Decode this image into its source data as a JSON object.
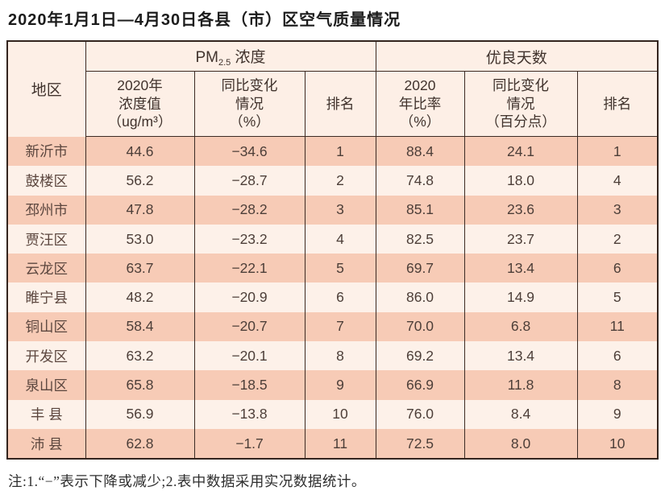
{
  "page": {
    "title": "2020年1月1日—4月30日各县（市）区空气质量情况",
    "note": "注:1.“−”表示下降或减少;2.表中数据采用实况数据统计。"
  },
  "table": {
    "header": {
      "region": "地区",
      "pm_group": {
        "prefix": "PM",
        "sub": "2.5",
        "suffix": " 浓度"
      },
      "good_days_group": "优良天数",
      "sub_headers": {
        "pm_value": "2020年\n浓度值\n（ug/m³）",
        "pm_change": "同比变化\n情况\n（%）",
        "pm_rank": "排名",
        "gd_rate": "2020\n年比率\n（%）",
        "gd_change": "同比变化\n情况\n（百分点）",
        "gd_rank": "排名"
      }
    },
    "rows": [
      {
        "region": "新沂市",
        "pm_value": "44.6",
        "pm_change": "−34.6",
        "pm_rank": "1",
        "gd_rate": "88.4",
        "gd_change": "24.1",
        "gd_rank": "1"
      },
      {
        "region": "鼓楼区",
        "pm_value": "56.2",
        "pm_change": "−28.7",
        "pm_rank": "2",
        "gd_rate": "74.8",
        "gd_change": "18.0",
        "gd_rank": "4"
      },
      {
        "region": "邳州市",
        "pm_value": "47.8",
        "pm_change": "−28.2",
        "pm_rank": "3",
        "gd_rate": "85.1",
        "gd_change": "23.6",
        "gd_rank": "3"
      },
      {
        "region": "贾汪区",
        "pm_value": "53.0",
        "pm_change": "−23.2",
        "pm_rank": "4",
        "gd_rate": "82.5",
        "gd_change": "23.7",
        "gd_rank": "2"
      },
      {
        "region": "云龙区",
        "pm_value": "63.7",
        "pm_change": "−22.1",
        "pm_rank": "5",
        "gd_rate": "69.7",
        "gd_change": "13.4",
        "gd_rank": "6"
      },
      {
        "region": "睢宁县",
        "pm_value": "48.2",
        "pm_change": "−20.9",
        "pm_rank": "6",
        "gd_rate": "86.0",
        "gd_change": "14.9",
        "gd_rank": "5"
      },
      {
        "region": "铜山区",
        "pm_value": "58.4",
        "pm_change": "−20.7",
        "pm_rank": "7",
        "gd_rate": "70.0",
        "gd_change": "6.8",
        "gd_rank": "11"
      },
      {
        "region": "开发区",
        "pm_value": "63.2",
        "pm_change": "−20.1",
        "pm_rank": "8",
        "gd_rate": "69.2",
        "gd_change": "13.4",
        "gd_rank": "6"
      },
      {
        "region": "泉山区",
        "pm_value": "65.8",
        "pm_change": "−18.5",
        "pm_rank": "9",
        "gd_rate": "66.9",
        "gd_change": "11.8",
        "gd_rank": "8"
      },
      {
        "region": "丰 县",
        "pm_value": "56.9",
        "pm_change": "−13.8",
        "pm_rank": "10",
        "gd_rate": "76.0",
        "gd_change": "8.4",
        "gd_rank": "9"
      },
      {
        "region": "沛 县",
        "pm_value": "62.8",
        "pm_change": "−1.7",
        "pm_rank": "11",
        "gd_rate": "72.5",
        "gd_change": "8.0",
        "gd_rank": "10"
      }
    ],
    "colors": {
      "row_salmon": "#f7cbb6",
      "row_light": "#fdf1e9",
      "header_bg": "#fdefe6",
      "border": "#33241e"
    }
  }
}
